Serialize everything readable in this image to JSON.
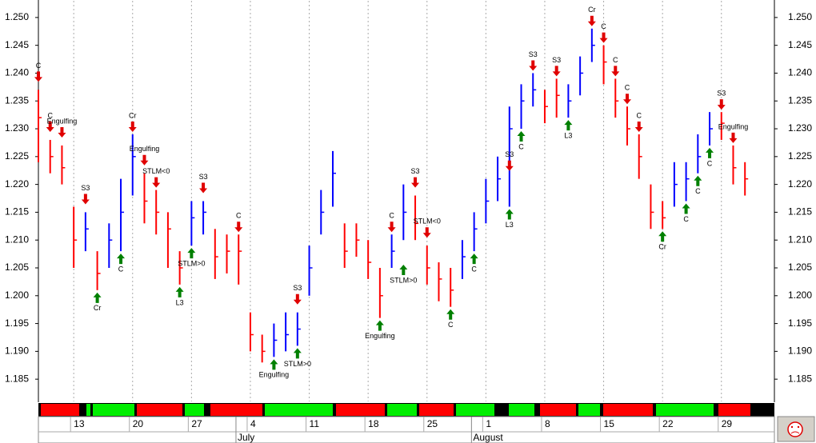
{
  "chart_data": {
    "type": "ohlc",
    "xlim": [
      0,
      62.5
    ],
    "ylim": [
      1.181,
      1.253
    ],
    "yticks": [
      1.185,
      {
        "value": 1.19,
        "label": "1.190"
      },
      1.195,
      {
        "value": 1.2,
        "label": "1.200"
      },
      1.205,
      {
        "value": 1.21,
        "label": "1.210"
      },
      1.215,
      {
        "value": 1.22,
        "label": "1.220"
      },
      1.225,
      {
        "value": 1.23,
        "label": "1.230"
      },
      1.235,
      {
        "value": 1.24,
        "label": "1.240"
      },
      1.245,
      {
        "value": 1.25,
        "label": "1.250"
      }
    ],
    "xticks": [
      {
        "value": 3,
        "label": "13"
      },
      {
        "value": 8,
        "label": "20"
      },
      {
        "value": 13,
        "label": "27"
      },
      {
        "value": 18,
        "label": "4"
      },
      {
        "value": 23,
        "label": "11"
      },
      {
        "value": 28,
        "label": "18"
      },
      {
        "value": 33,
        "label": "25"
      },
      {
        "value": 38,
        "label": "1"
      },
      {
        "value": 43,
        "label": "8"
      },
      {
        "value": 48,
        "label": "15"
      },
      {
        "value": 53,
        "label": "22"
      },
      {
        "value": 58,
        "label": "29"
      }
    ],
    "months": [
      {
        "value": 18,
        "label": "July"
      },
      {
        "value": 38,
        "label": "August"
      }
    ],
    "grid": true,
    "high": [
      1.237,
      1.228,
      1.227,
      1.216,
      1.215,
      1.208,
      1.213,
      1.221,
      1.229,
      1.222,
      1.219,
      1.215,
      1.208,
      1.217,
      1.217,
      1.212,
      1.211,
      1.211,
      1.197,
      1.193,
      1.195,
      1.197,
      1.197,
      1.209,
      1.219,
      1.226,
      1.213,
      1.213,
      1.21,
      1.205,
      1.211,
      1.22,
      1.218,
      1.209,
      1.206,
      1.205,
      1.21,
      1.215,
      1.221,
      1.225,
      1.234,
      1.238,
      1.24,
      1.237,
      1.239,
      1.238,
      1.243,
      1.248,
      1.245,
      1.239,
      1.234,
      1.229,
      1.22,
      1.217,
      1.224,
      1.224,
      1.229,
      1.233,
      1.233,
      1.227,
      1.224
    ],
    "low": [
      1.224,
      1.222,
      1.22,
      1.205,
      1.208,
      1.201,
      1.205,
      1.208,
      1.218,
      1.213,
      1.211,
      1.205,
      1.202,
      1.209,
      1.211,
      1.203,
      1.204,
      1.202,
      1.19,
      1.188,
      1.189,
      1.19,
      1.191,
      1.2,
      1.211,
      1.216,
      1.205,
      1.207,
      1.203,
      1.196,
      1.205,
      1.21,
      1.21,
      1.202,
      1.199,
      1.198,
      1.203,
      1.208,
      1.213,
      1.217,
      1.216,
      1.23,
      1.234,
      1.231,
      1.232,
      1.232,
      1.236,
      1.242,
      1.238,
      1.232,
      1.227,
      1.221,
      1.212,
      1.212,
      1.216,
      1.217,
      1.222,
      1.227,
      1.228,
      1.22,
      1.218
    ],
    "close": [
      1.232,
      1.225,
      1.223,
      1.21,
      1.212,
      1.204,
      1.21,
      1.215,
      1.225,
      1.217,
      1.215,
      1.212,
      1.205,
      1.214,
      1.215,
      1.207,
      1.208,
      1.208,
      1.193,
      1.19,
      1.192,
      1.193,
      1.194,
      1.205,
      1.215,
      1.222,
      1.208,
      1.21,
      1.206,
      1.2,
      1.208,
      1.215,
      1.213,
      1.205,
      1.203,
      1.201,
      1.207,
      1.212,
      1.217,
      1.221,
      1.23,
      1.235,
      1.237,
      1.234,
      1.236,
      1.235,
      1.24,
      1.245,
      1.242,
      1.235,
      1.23,
      1.225,
      1.215,
      1.214,
      1.22,
      1.221,
      1.225,
      1.23,
      1.231,
      1.223,
      1.221
    ],
    "colors": [
      "#ff0000",
      "#ff0000",
      "#ff0000",
      "#ff0000",
      "#0000ff",
      "#ff0000",
      "#0000ff",
      "#0000ff",
      "#0000ff",
      "#ff0000",
      "#ff0000",
      "#ff0000",
      "#ff0000",
      "#0000ff",
      "#0000ff",
      "#ff0000",
      "#ff0000",
      "#ff0000",
      "#ff0000",
      "#ff0000",
      "#0000ff",
      "#0000ff",
      "#0000ff",
      "#0000ff",
      "#0000ff",
      "#0000ff",
      "#ff0000",
      "#ff0000",
      "#ff0000",
      "#ff0000",
      "#0000ff",
      "#0000ff",
      "#ff0000",
      "#ff0000",
      "#ff0000",
      "#ff0000",
      "#0000ff",
      "#0000ff",
      "#0000ff",
      "#0000ff",
      "#0000ff",
      "#0000ff",
      "#0000ff",
      "#ff0000",
      "#ff0000",
      "#0000ff",
      "#0000ff",
      "#0000ff",
      "#ff0000",
      "#ff0000",
      "#ff0000",
      "#ff0000",
      "#ff0000",
      "#ff0000",
      "#0000ff",
      "#0000ff",
      "#0000ff",
      "#0000ff",
      "#ff0000",
      "#ff0000",
      "#ff0000"
    ],
    "annotations": [
      {
        "x": 0,
        "y": 1.238,
        "label": "C",
        "color": "#e00000"
      },
      {
        "x": 1,
        "y": 1.229,
        "label": "C",
        "color": "#e00000"
      },
      {
        "x": 2,
        "y": 1.228,
        "label": "Engulfing",
        "color": "#e00000"
      },
      {
        "x": 4,
        "y": 1.216,
        "label": "S3",
        "color": "#e00000"
      },
      {
        "x": 5,
        "y": 1.201,
        "label": "Cr",
        "color": "#008000"
      },
      {
        "x": 7,
        "y": 1.208,
        "label": "C",
        "color": "#008000"
      },
      {
        "x": 8,
        "y": 1.229,
        "label": "Cr",
        "color": "#e00000"
      },
      {
        "x": 9,
        "y": 1.223,
        "label": "Engulfing",
        "color": "#e00000"
      },
      {
        "x": 10,
        "y": 1.219,
        "label": "STLM<0",
        "color": "#e00000"
      },
      {
        "x": 12,
        "y": 1.202,
        "label": "L3",
        "color": "#008000"
      },
      {
        "x": 13,
        "y": 1.209,
        "label": "STLM>0",
        "color": "#008000"
      },
      {
        "x": 14,
        "y": 1.218,
        "label": "S3",
        "color": "#e00000"
      },
      {
        "x": 17,
        "y": 1.211,
        "label": "C",
        "color": "#e00000"
      },
      {
        "x": 20,
        "y": 1.189,
        "label": "Engulfing",
        "color": "#008000"
      },
      {
        "x": 22,
        "y": 1.191,
        "label": "STLM>0",
        "color": "#008000"
      },
      {
        "x": 22,
        "y": 1.198,
        "label": "S3",
        "color": "#e00000"
      },
      {
        "x": 29,
        "y": 1.196,
        "label": "Engulfing",
        "color": "#008000"
      },
      {
        "x": 30,
        "y": 1.211,
        "label": "C",
        "color": "#e00000"
      },
      {
        "x": 31,
        "y": 1.206,
        "label": "STLM>0",
        "color": "#008000"
      },
      {
        "x": 32,
        "y": 1.219,
        "label": "S3",
        "color": "#e00000"
      },
      {
        "x": 33,
        "y": 1.21,
        "label": "STLM<0",
        "color": "#e00000"
      },
      {
        "x": 35,
        "y": 1.198,
        "label": "C",
        "color": "#008000"
      },
      {
        "x": 37,
        "y": 1.208,
        "label": "C",
        "color": "#008000"
      },
      {
        "x": 40,
        "y": 1.222,
        "label": "S3",
        "color": "#e00000"
      },
      {
        "x": 40,
        "y": 1.216,
        "label": "L3",
        "color": "#008000"
      },
      {
        "x": 41,
        "y": 1.23,
        "label": "C",
        "color": "#008000"
      },
      {
        "x": 42,
        "y": 1.24,
        "label": "S3",
        "color": "#e00000"
      },
      {
        "x": 44,
        "y": 1.239,
        "label": "S3",
        "color": "#e00000"
      },
      {
        "x": 45,
        "y": 1.232,
        "label": "L3",
        "color": "#008000"
      },
      {
        "x": 47,
        "y": 1.248,
        "label": "Cr",
        "color": "#e00000"
      },
      {
        "x": 48,
        "y": 1.245,
        "label": "C",
        "color": "#e00000"
      },
      {
        "x": 49,
        "y": 1.239,
        "label": "C",
        "color": "#e00000"
      },
      {
        "x": 50,
        "y": 1.234,
        "label": "C",
        "color": "#e00000"
      },
      {
        "x": 51,
        "y": 1.229,
        "label": "C",
        "color": "#e00000"
      },
      {
        "x": 53,
        "y": 1.212,
        "label": "Cr",
        "color": "#008000"
      },
      {
        "x": 55,
        "y": 1.217,
        "label": "C",
        "color": "#008000"
      },
      {
        "x": 56,
        "y": 1.222,
        "label": "C",
        "color": "#008000"
      },
      {
        "x": 57,
        "y": 1.227,
        "label": "C",
        "color": "#008000"
      },
      {
        "x": 58,
        "y": 1.233,
        "label": "S3",
        "color": "#e00000"
      },
      {
        "x": 59,
        "y": 1.227,
        "label": "Engulfing",
        "color": "#e00000"
      }
    ]
  }
}
